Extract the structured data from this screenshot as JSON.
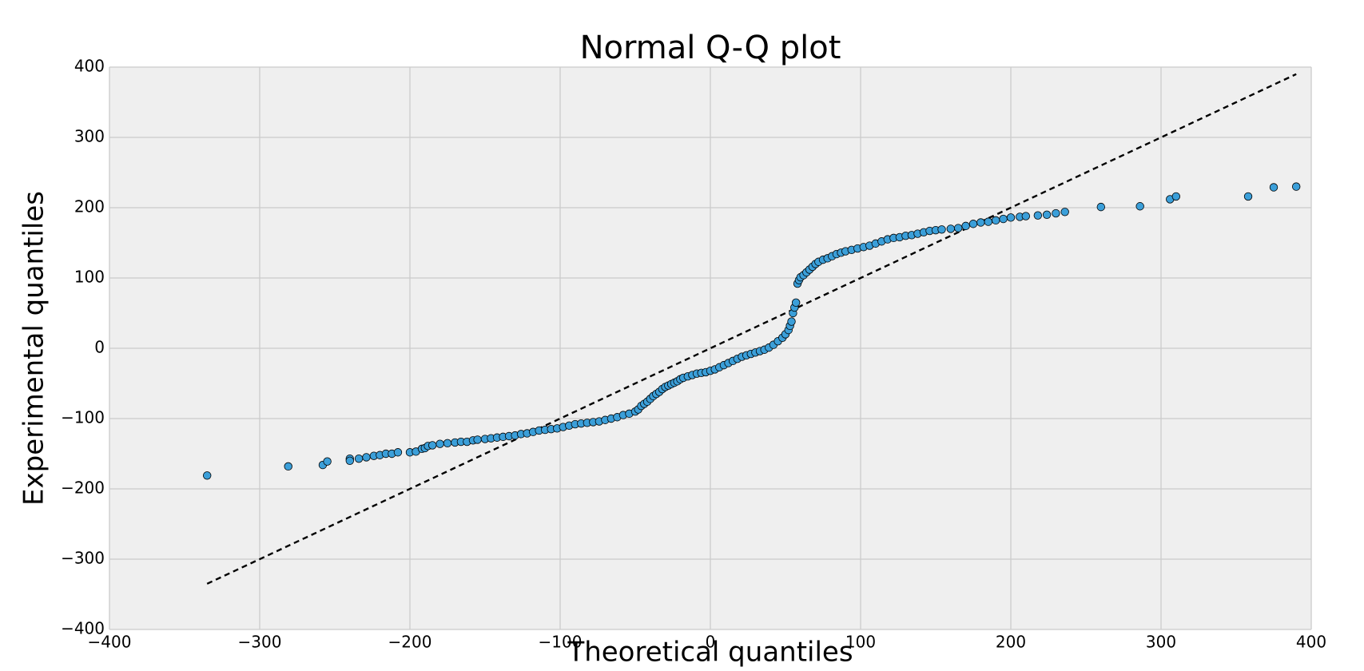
{
  "chart_data": {
    "type": "scatter",
    "title": "Normal Q-Q plot",
    "x_label": "Theoretical quantiles",
    "y_label": "Experimental quantiles",
    "color": "#3b9fd9",
    "edgecolor": "#000000",
    "background": "#efefef",
    "grid": true,
    "grid_color": "#cbcbcb",
    "x": [
      -335,
      -281,
      -258,
      -255,
      -240,
      -240,
      -234,
      -229,
      -224,
      -220,
      -216,
      -212,
      -208,
      -200,
      -196,
      -192,
      -190,
      -188,
      -185,
      -180,
      -175,
      -170,
      -166,
      -162,
      -158,
      -155,
      -150,
      -146,
      -142,
      -138,
      -134,
      -130,
      -126,
      -122,
      -118,
      -114,
      -110,
      -106,
      -102,
      -98,
      -94,
      -90,
      -86,
      -82,
      -78,
      -74,
      -70,
      -66,
      -62,
      -58,
      -54,
      -50,
      -48,
      -46,
      -44,
      -42,
      -40,
      -38,
      -36,
      -34,
      -32,
      -30,
      -28,
      -26,
      -24,
      -22,
      -20,
      -18,
      -15,
      -12,
      -9,
      -6,
      -3,
      0,
      3,
      6,
      9,
      12,
      15,
      18,
      21,
      24,
      27,
      30,
      33,
      36,
      39,
      42,
      45,
      48,
      50,
      52,
      53,
      54,
      55,
      56,
      57,
      58,
      59,
      60,
      62,
      64,
      66,
      68,
      70,
      72,
      75,
      78,
      81,
      84,
      87,
      90,
      94,
      98,
      102,
      106,
      110,
      114,
      118,
      122,
      126,
      130,
      134,
      138,
      142,
      146,
      150,
      154,
      160,
      165,
      170,
      175,
      180,
      185,
      190,
      195,
      200,
      206,
      210,
      218,
      224,
      230,
      236,
      260,
      286,
      306,
      310,
      358,
      375,
      390
    ],
    "y": [
      -181,
      -168,
      -166,
      -161,
      -157,
      -160,
      -157,
      -155,
      -153,
      -152,
      -150,
      -150,
      -148,
      -148,
      -147,
      -143,
      -142,
      -139,
      -138,
      -136,
      -135,
      -134,
      -133,
      -133,
      -131,
      -130,
      -129,
      -128,
      -127,
      -126,
      -125,
      -124,
      -122,
      -121,
      -119,
      -117,
      -116,
      -115,
      -114,
      -112,
      -110,
      -108,
      -107,
      -106,
      -105,
      -104,
      -102,
      -100,
      -98,
      -95,
      -93,
      -90,
      -87,
      -82,
      -79,
      -76,
      -72,
      -68,
      -65,
      -62,
      -58,
      -55,
      -53,
      -51,
      -49,
      -47,
      -44,
      -42,
      -40,
      -38,
      -36,
      -35,
      -34,
      -32,
      -30,
      -27,
      -24,
      -21,
      -18,
      -15,
      -12,
      -10,
      -8,
      -6,
      -4,
      -2,
      1,
      5,
      10,
      15,
      20,
      26,
      32,
      38,
      50,
      58,
      65,
      92,
      97,
      101,
      104,
      108,
      112,
      116,
      120,
      123,
      126,
      128,
      131,
      134,
      136,
      138,
      140,
      142,
      144,
      146,
      149,
      152,
      155,
      157,
      158,
      160,
      161,
      163,
      165,
      167,
      168,
      169,
      170,
      171,
      174,
      177,
      179,
      180,
      182,
      184,
      186,
      187,
      188,
      189,
      190,
      192,
      194,
      201,
      202,
      212,
      216,
      216,
      229,
      230
    ],
    "reference_line": {
      "x": [
        -335,
        390
      ],
      "y": [
        -335,
        390
      ],
      "color": "#000000",
      "dashed": true
    },
    "xlim": [
      -400,
      400
    ],
    "ylim": [
      -400,
      400
    ],
    "xticks": [
      {
        "value": -400,
        "label": "−400"
      },
      {
        "value": -300,
        "label": "−300"
      },
      {
        "value": -200,
        "label": "−200"
      },
      {
        "value": -100,
        "label": "−100"
      },
      0,
      100,
      200,
      300,
      400
    ],
    "yticks": [
      {
        "value": -400,
        "label": "−400"
      },
      {
        "value": -300,
        "label": "−300"
      },
      {
        "value": -200,
        "label": "−200"
      },
      {
        "value": -100,
        "label": "−100"
      },
      0,
      100,
      200,
      300,
      400
    ]
  }
}
